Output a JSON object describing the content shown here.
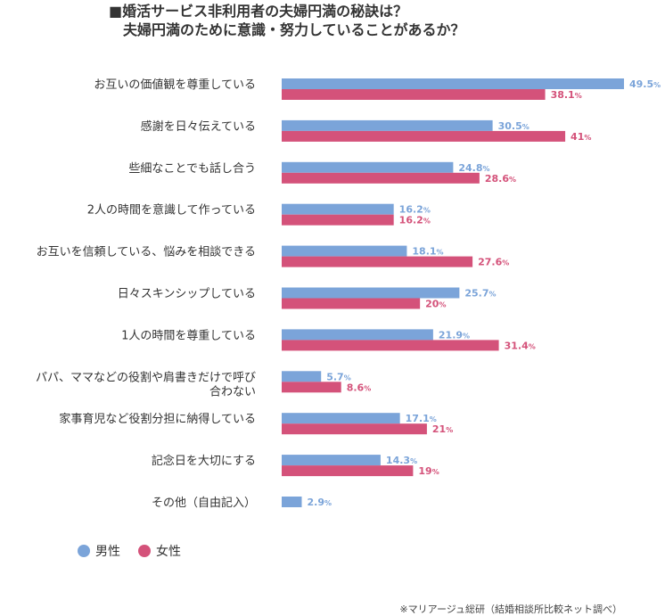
{
  "title_line1": "■婚活サービス非利用者の夫婦円満の秘訣は？",
  "title_line2": "　夫婦円満のために意識・努力していることがあるか？",
  "source": "※マリアージュ総研（結婚相談所比較ネット調べ）",
  "colors": {
    "male": "#7ba4d9",
    "female": "#d4527a",
    "text": "#333333"
  },
  "chart_data": {
    "type": "bar",
    "orientation": "horizontal",
    "title": "■婚活サービス非利用者の夫婦円満の秘訣は？ 夫婦円満のために意識・努力していることがあるか？",
    "unit": "%",
    "xlim": [
      0,
      55
    ],
    "grid": false,
    "legend_position": "bottom-left",
    "categories": [
      "お互いの価値観を尊重している",
      "感謝を日々伝えている",
      "些細なことでも話し合う",
      "2人の時間を意識して作っている",
      "お互いを信頼している、悩みを相談できる",
      "日々スキンシップしている",
      "1人の時間を尊重している",
      "パパ、ママなどの役割や肩書きだけで呼び合わない",
      "家事育児など役割分担に納得している",
      "記念日を大切にする",
      "その他（自由記入）"
    ],
    "category_lines": [
      [
        "お互いの価値観を尊重している"
      ],
      [
        "感謝を日々伝えている"
      ],
      [
        "些細なことでも話し合う"
      ],
      [
        "2人の時間を意識して作っている"
      ],
      [
        "お互いを信頼している、悩みを相談できる"
      ],
      [
        "日々スキンシップしている"
      ],
      [
        "1人の時間を尊重している"
      ],
      [
        "パパ、ママなどの役割や肩書きだけで呼び",
        "合わない"
      ],
      [
        "家事育児など役割分担に納得している"
      ],
      [
        "記念日を大切にする"
      ],
      [
        "その他（自由記入）"
      ]
    ],
    "series": [
      {
        "name": "男性",
        "color": "#7ba4d9",
        "values": [
          49.5,
          30.5,
          24.8,
          16.2,
          18.1,
          25.7,
          21.9,
          5.7,
          17.1,
          14.3,
          2.9
        ],
        "labels": [
          "49.5",
          "30.5",
          "24.8",
          "16.2",
          "18.1",
          "25.7",
          "21.9",
          "5.7",
          "17.1",
          "14.3",
          "2.9"
        ]
      },
      {
        "name": "女性",
        "color": "#d4527a",
        "values": [
          38.1,
          41,
          28.6,
          16.2,
          27.6,
          20,
          31.4,
          8.6,
          21,
          19,
          null
        ],
        "labels": [
          "38.1",
          "41",
          "28.6",
          "16.2",
          "27.6",
          "20",
          "31.4",
          "8.6",
          "21",
          "19",
          null
        ]
      }
    ]
  }
}
